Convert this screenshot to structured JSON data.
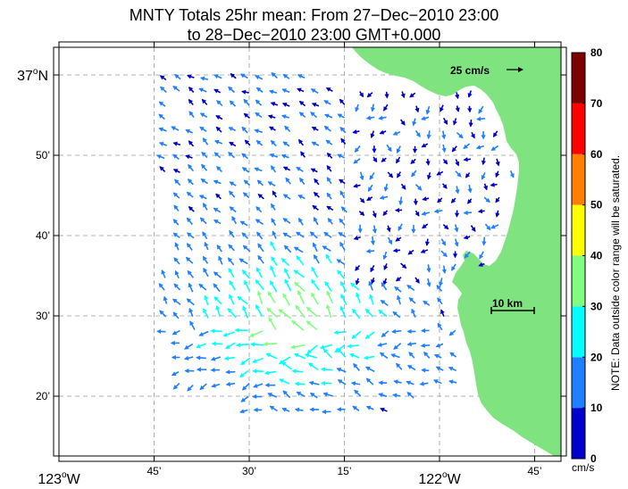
{
  "title": {
    "line1": "MNTY Totals 25hr mean: From 27−Dec−2010 23:00",
    "line2": "to 28−Dec−2010 23:00 GMT+0.000"
  },
  "axes": {
    "y_labels": [
      {
        "deg": "37",
        "min": "",
        "hemi": "N",
        "value": 37.0
      },
      {
        "deg": "",
        "min": "50’",
        "hemi": "",
        "value": 36.8333
      },
      {
        "deg": "",
        "min": "40’",
        "hemi": "",
        "value": 36.6667
      },
      {
        "deg": "",
        "min": "30’",
        "hemi": "",
        "value": 36.5
      },
      {
        "deg": "",
        "min": "20’",
        "hemi": "",
        "value": 36.3333
      }
    ],
    "x_labels": [
      {
        "deg": "123",
        "min": "",
        "hemi": "W",
        "value": -123.0
      },
      {
        "deg": "",
        "min": "45’",
        "hemi": "",
        "value": -122.75
      },
      {
        "deg": "",
        "min": "30’",
        "hemi": "",
        "value": -122.5
      },
      {
        "deg": "",
        "min": "15’",
        "hemi": "",
        "value": -122.25
      },
      {
        "deg": "122",
        "min": "",
        "hemi": "W",
        "value": -122.0
      },
      {
        "deg": "",
        "min": "45’",
        "hemi": "",
        "value": -121.75
      }
    ],
    "lon_range": [
      -123.0,
      -121.75
    ],
    "lat_range": [
      36.22,
      37.03
    ],
    "grid": true,
    "grid_style": "dashed"
  },
  "scale_arrow": {
    "label": "25 cm/s",
    "value_cm_s": 25
  },
  "scale_bar": {
    "label": "10 km",
    "value_km": 10
  },
  "colorbar": {
    "ticks": [
      "80",
      "70",
      "60",
      "50",
      "40",
      "30",
      "20",
      "10",
      "0"
    ],
    "unit": "cm/s",
    "colors": [
      "#0000cd",
      "#1e7fff",
      "#00ffff",
      "#7fff7f",
      "#ffff00",
      "#ff8000",
      "#ff0000",
      "#7f0000"
    ],
    "note": "NOTE: Data outside color range will be saturated."
  },
  "land_color": "#7fe37f"
}
